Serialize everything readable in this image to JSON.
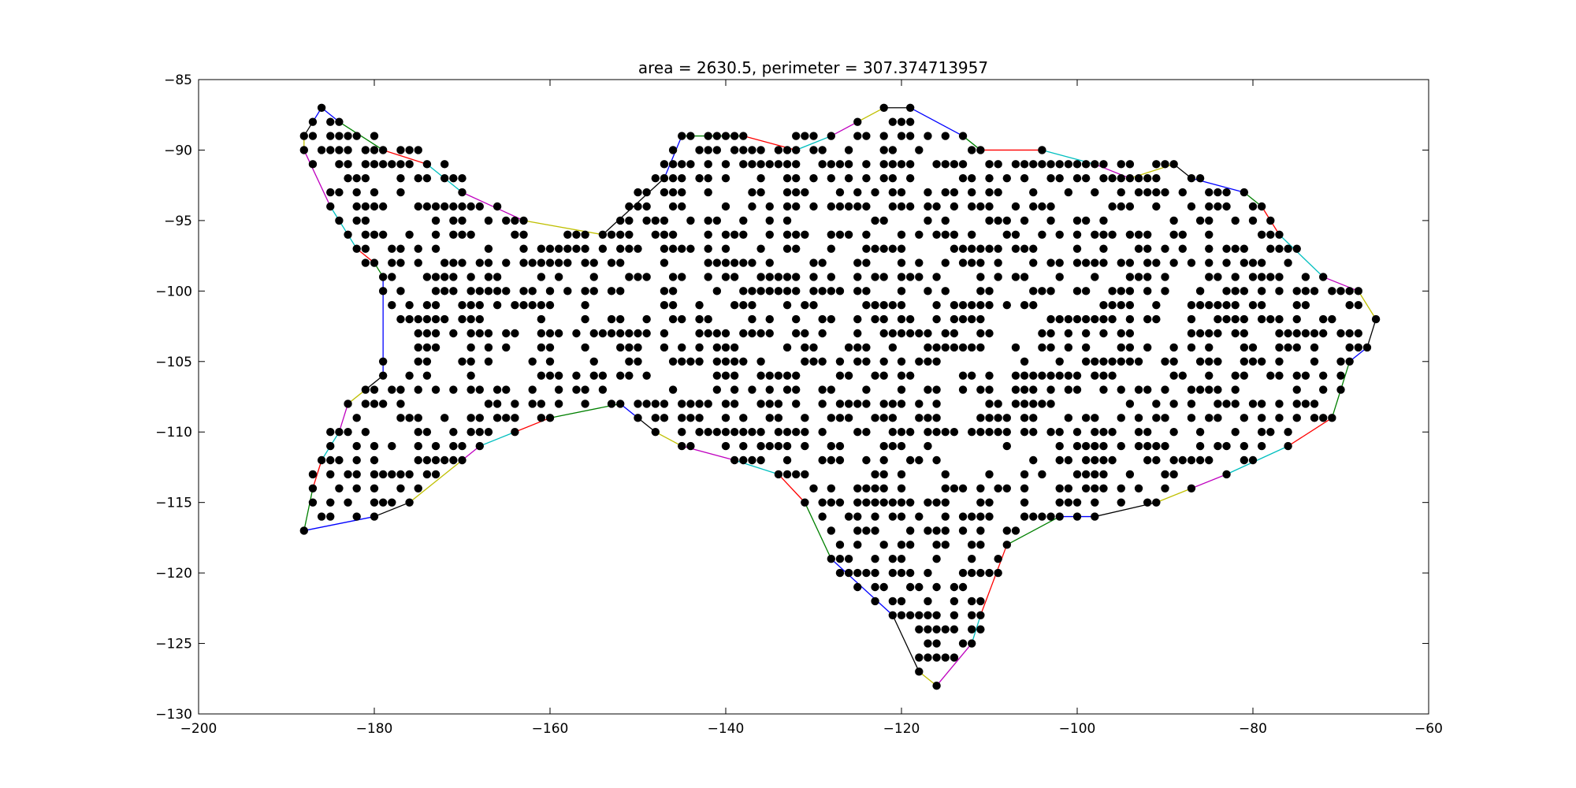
{
  "chart_data": {
    "type": "scatter",
    "title": "area = 2630.5, perimeter = 307.374713957",
    "xlabel": "",
    "ylabel": "",
    "xlim": [
      -200,
      -60
    ],
    "ylim": [
      -130,
      -85
    ],
    "xticks": [
      -200,
      -180,
      -160,
      -140,
      -120,
      -100,
      -80,
      -60
    ],
    "yticks": [
      -85,
      -90,
      -95,
      -100,
      -105,
      -110,
      -115,
      -120,
      -125,
      -130
    ],
    "grid": false,
    "legend": "none",
    "point_color": "#000000",
    "segment_colors": [
      "#0000ff",
      "#008000",
      "#ff0000",
      "#00bfbf",
      "#bf00bf",
      "#bfbf00",
      "#000000"
    ],
    "hull": [
      [
        -186,
        -87
      ],
      [
        -184,
        -88
      ],
      [
        -179,
        -90
      ],
      [
        -174,
        -91
      ],
      [
        -170,
        -93
      ],
      [
        -163,
        -95
      ],
      [
        -154,
        -96
      ],
      [
        -147,
        -92
      ],
      [
        -145,
        -89
      ],
      [
        -138,
        -89
      ],
      [
        -132,
        -90
      ],
      [
        -128,
        -89
      ],
      [
        -125,
        -88
      ],
      [
        -122,
        -87
      ],
      [
        -119,
        -87
      ],
      [
        -113,
        -89
      ],
      [
        -111,
        -90
      ],
      [
        -104,
        -90
      ],
      [
        -98,
        -91
      ],
      [
        -94,
        -92
      ],
      [
        -89,
        -91
      ],
      [
        -87,
        -92
      ],
      [
        -81,
        -93
      ],
      [
        -79,
        -94
      ],
      [
        -77,
        -96
      ],
      [
        -72,
        -99
      ],
      [
        -68,
        -100
      ],
      [
        -66,
        -102
      ],
      [
        -67,
        -104
      ],
      [
        -69,
        -105
      ],
      [
        -71,
        -109
      ],
      [
        -76,
        -111
      ],
      [
        -83,
        -113
      ],
      [
        -87,
        -114
      ],
      [
        -91,
        -115
      ],
      [
        -98,
        -116
      ],
      [
        -102,
        -116
      ],
      [
        -108,
        -118
      ],
      [
        -111,
        -123
      ],
      [
        -112,
        -125
      ],
      [
        -116,
        -128
      ],
      [
        -118,
        -127
      ],
      [
        -121,
        -123
      ],
      [
        -128,
        -119
      ],
      [
        -131,
        -115
      ],
      [
        -134,
        -113
      ],
      [
        -139,
        -112
      ],
      [
        -145,
        -111
      ],
      [
        -148,
        -110
      ],
      [
        -150,
        -109
      ],
      [
        -152,
        -108
      ],
      [
        -160,
        -109
      ],
      [
        -164,
        -110
      ],
      [
        -168,
        -111
      ],
      [
        -170,
        -112
      ],
      [
        -176,
        -115
      ],
      [
        -180,
        -116
      ],
      [
        -188,
        -117
      ],
      [
        -187,
        -114
      ],
      [
        -186,
        -112
      ],
      [
        -184,
        -110
      ],
      [
        -183,
        -108
      ],
      [
        -181,
        -107
      ],
      [
        -179,
        -106
      ],
      [
        -179,
        -99
      ],
      [
        -180,
        -98
      ],
      [
        -182,
        -97
      ],
      [
        -185,
        -94
      ],
      [
        -188,
        -90
      ],
      [
        -188,
        -89
      ],
      [
        -187,
        -88
      ]
    ],
    "row_spans": [
      [
        -87,
        [
          [
            -186,
            -186
          ],
          [
            -122,
            -119
          ]
        ]
      ],
      [
        -88,
        [
          [
            -187,
            -184
          ],
          [
            -125,
            -119
          ]
        ]
      ],
      [
        -89,
        [
          [
            -188,
            -178
          ],
          [
            -145,
            -113
          ]
        ]
      ],
      [
        -90,
        [
          [
            -188,
            -175
          ],
          [
            -147,
            -111
          ]
        ]
      ],
      [
        -91,
        [
          [
            -187,
            -172
          ],
          [
            -148,
            -89
          ]
        ]
      ],
      [
        -92,
        [
          [
            -186,
            -170
          ],
          [
            -149,
            -86
          ]
        ]
      ],
      [
        -93,
        [
          [
            -186,
            -168
          ],
          [
            -150,
            -81
          ]
        ]
      ],
      [
        -94,
        [
          [
            -185,
            -166
          ],
          [
            -151,
            -79
          ]
        ]
      ],
      [
        -95,
        [
          [
            -184,
            -162
          ],
          [
            -153,
            -78
          ]
        ]
      ],
      [
        -96,
        [
          [
            -184,
            -156
          ],
          [
            -154,
            -77
          ]
        ]
      ],
      [
        -97,
        [
          [
            -182,
            -75
          ]
        ]
      ],
      [
        -98,
        [
          [
            -181,
            -73
          ]
        ]
      ],
      [
        -99,
        [
          [
            -179,
            -72
          ]
        ]
      ],
      [
        -100,
        [
          [
            -179,
            -69
          ]
        ]
      ],
      [
        -101,
        [
          [
            -179,
            -68
          ]
        ]
      ],
      [
        -102,
        [
          [
            -179,
            -67
          ]
        ]
      ],
      [
        -103,
        [
          [
            -179,
            -67
          ]
        ]
      ],
      [
        -104,
        [
          [
            -179,
            -67
          ]
        ]
      ],
      [
        -105,
        [
          [
            -179,
            -69
          ]
        ]
      ],
      [
        -106,
        [
          [
            -179,
            -70
          ]
        ]
      ],
      [
        -107,
        [
          [
            -181,
            -70
          ]
        ]
      ],
      [
        -108,
        [
          [
            -183,
            -152
          ],
          [
            -150,
            -71
          ]
        ]
      ],
      [
        -109,
        [
          [
            -184,
            -160
          ],
          [
            -148,
            -72
          ]
        ]
      ],
      [
        -110,
        [
          [
            -185,
            -164
          ],
          [
            -147,
            -75
          ]
        ]
      ],
      [
        -111,
        [
          [
            -186,
            -168
          ],
          [
            -144,
            -77
          ]
        ]
      ],
      [
        -112,
        [
          [
            -186,
            -170
          ],
          [
            -139,
            -80
          ]
        ]
      ],
      [
        -113,
        [
          [
            -187,
            -172
          ],
          [
            -134,
            -83
          ]
        ]
      ],
      [
        -114,
        [
          [
            -187,
            -174
          ],
          [
            -130,
            -87
          ]
        ]
      ],
      [
        -115,
        [
          [
            -187,
            -176
          ],
          [
            -131,
            -91
          ]
        ]
      ],
      [
        -116,
        [
          [
            -187,
            -181
          ],
          [
            -129,
            -98
          ]
        ]
      ],
      [
        -117,
        [
          [
            -188,
            -188
          ],
          [
            -128,
            -106
          ]
        ]
      ],
      [
        -118,
        [
          [
            -128,
            -108
          ]
        ]
      ],
      [
        -119,
        [
          [
            -128,
            -109
          ]
        ]
      ],
      [
        -120,
        [
          [
            -127,
            -109
          ]
        ]
      ],
      [
        -121,
        [
          [
            -125,
            -110
          ]
        ]
      ],
      [
        -122,
        [
          [
            -123,
            -110
          ]
        ]
      ],
      [
        -123,
        [
          [
            -121,
            -111
          ]
        ]
      ],
      [
        -124,
        [
          [
            -119,
            -111
          ]
        ]
      ],
      [
        -125,
        [
          [
            -118,
            -112
          ]
        ]
      ],
      [
        -126,
        [
          [
            -118,
            -114
          ]
        ]
      ],
      [
        -127,
        [
          [
            -118,
            -115
          ]
        ]
      ],
      [
        -128,
        [
          [
            -116,
            -116
          ]
        ]
      ]
    ],
    "extreme_points": [
      [
        -186,
        -87
      ],
      [
        -122,
        -87
      ],
      [
        -119,
        -87
      ],
      [
        -188,
        -89
      ],
      [
        -188,
        -90
      ],
      [
        -145,
        -89
      ],
      [
        -66,
        -102
      ],
      [
        -188,
        -117
      ],
      [
        -116,
        -128
      ],
      [
        -118,
        -127
      ],
      [
        -179,
        -99
      ],
      [
        -179,
        -106
      ]
    ]
  }
}
